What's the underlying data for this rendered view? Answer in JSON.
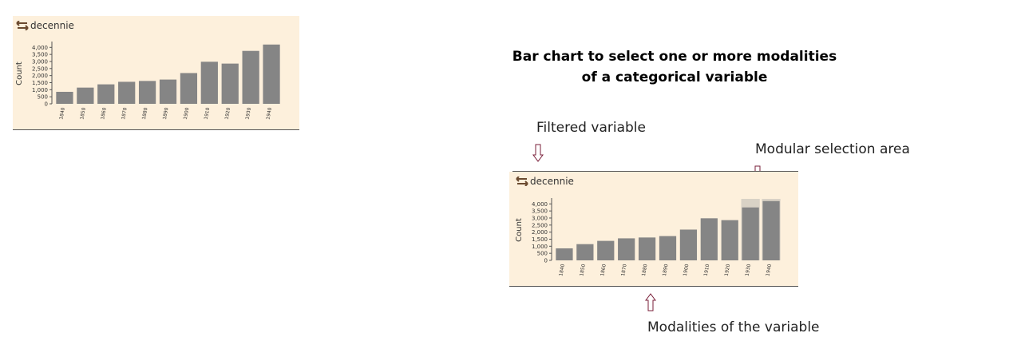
{
  "panel": {
    "variable_name": "decennie",
    "swap_icon": "swap-arrows-icon"
  },
  "heading": {
    "line1": "Bar chart to select one or more modalities",
    "line2": "of a categorical variable"
  },
  "annotations": {
    "filtered_variable": "Filtered variable",
    "modular_selection": "Modular selection area",
    "modalities": "Modalities of the variable"
  },
  "colors": {
    "panel_bg": "#fdf0dc",
    "bar": "#858585",
    "selection": "#d9d2c6",
    "arrow": "#7a1f3a"
  },
  "chart_data": [
    {
      "type": "bar",
      "title": "",
      "xlabel": "",
      "ylabel": "Count",
      "categories": [
        "1840",
        "1850",
        "1860",
        "1870",
        "1880",
        "1890",
        "1900",
        "1910",
        "1920",
        "1930",
        "1940"
      ],
      "values": [
        850,
        1150,
        1380,
        1560,
        1620,
        1720,
        2180,
        2980,
        2850,
        3750,
        4200
      ],
      "ylim": [
        0,
        4300
      ],
      "yticks": [
        0,
        500,
        1000,
        1500,
        2000,
        2500,
        3000,
        3500,
        4000
      ],
      "ytick_labels": [
        "0",
        "500",
        "1,000",
        "1,500",
        "2,000",
        "2,500",
        "3,000",
        "3,500",
        "4,000"
      ],
      "grid": false
    },
    {
      "type": "bar",
      "title": "",
      "xlabel": "",
      "ylabel": "Count",
      "categories": [
        "1840",
        "1850",
        "1860",
        "1870",
        "1880",
        "1890",
        "1900",
        "1910",
        "1920",
        "1930",
        "1940"
      ],
      "values": [
        850,
        1150,
        1380,
        1560,
        1620,
        1720,
        2180,
        2980,
        2850,
        3750,
        4200
      ],
      "ylim": [
        0,
        4300
      ],
      "yticks": [
        0,
        500,
        1000,
        1500,
        2000,
        2500,
        3000,
        3500,
        4000
      ],
      "ytick_labels": [
        "0",
        "500",
        "1,000",
        "1,500",
        "2,000",
        "2,500",
        "3,000",
        "3,500",
        "4,000"
      ],
      "grid": false,
      "selected_categories": [
        "1930",
        "1940"
      ]
    }
  ]
}
